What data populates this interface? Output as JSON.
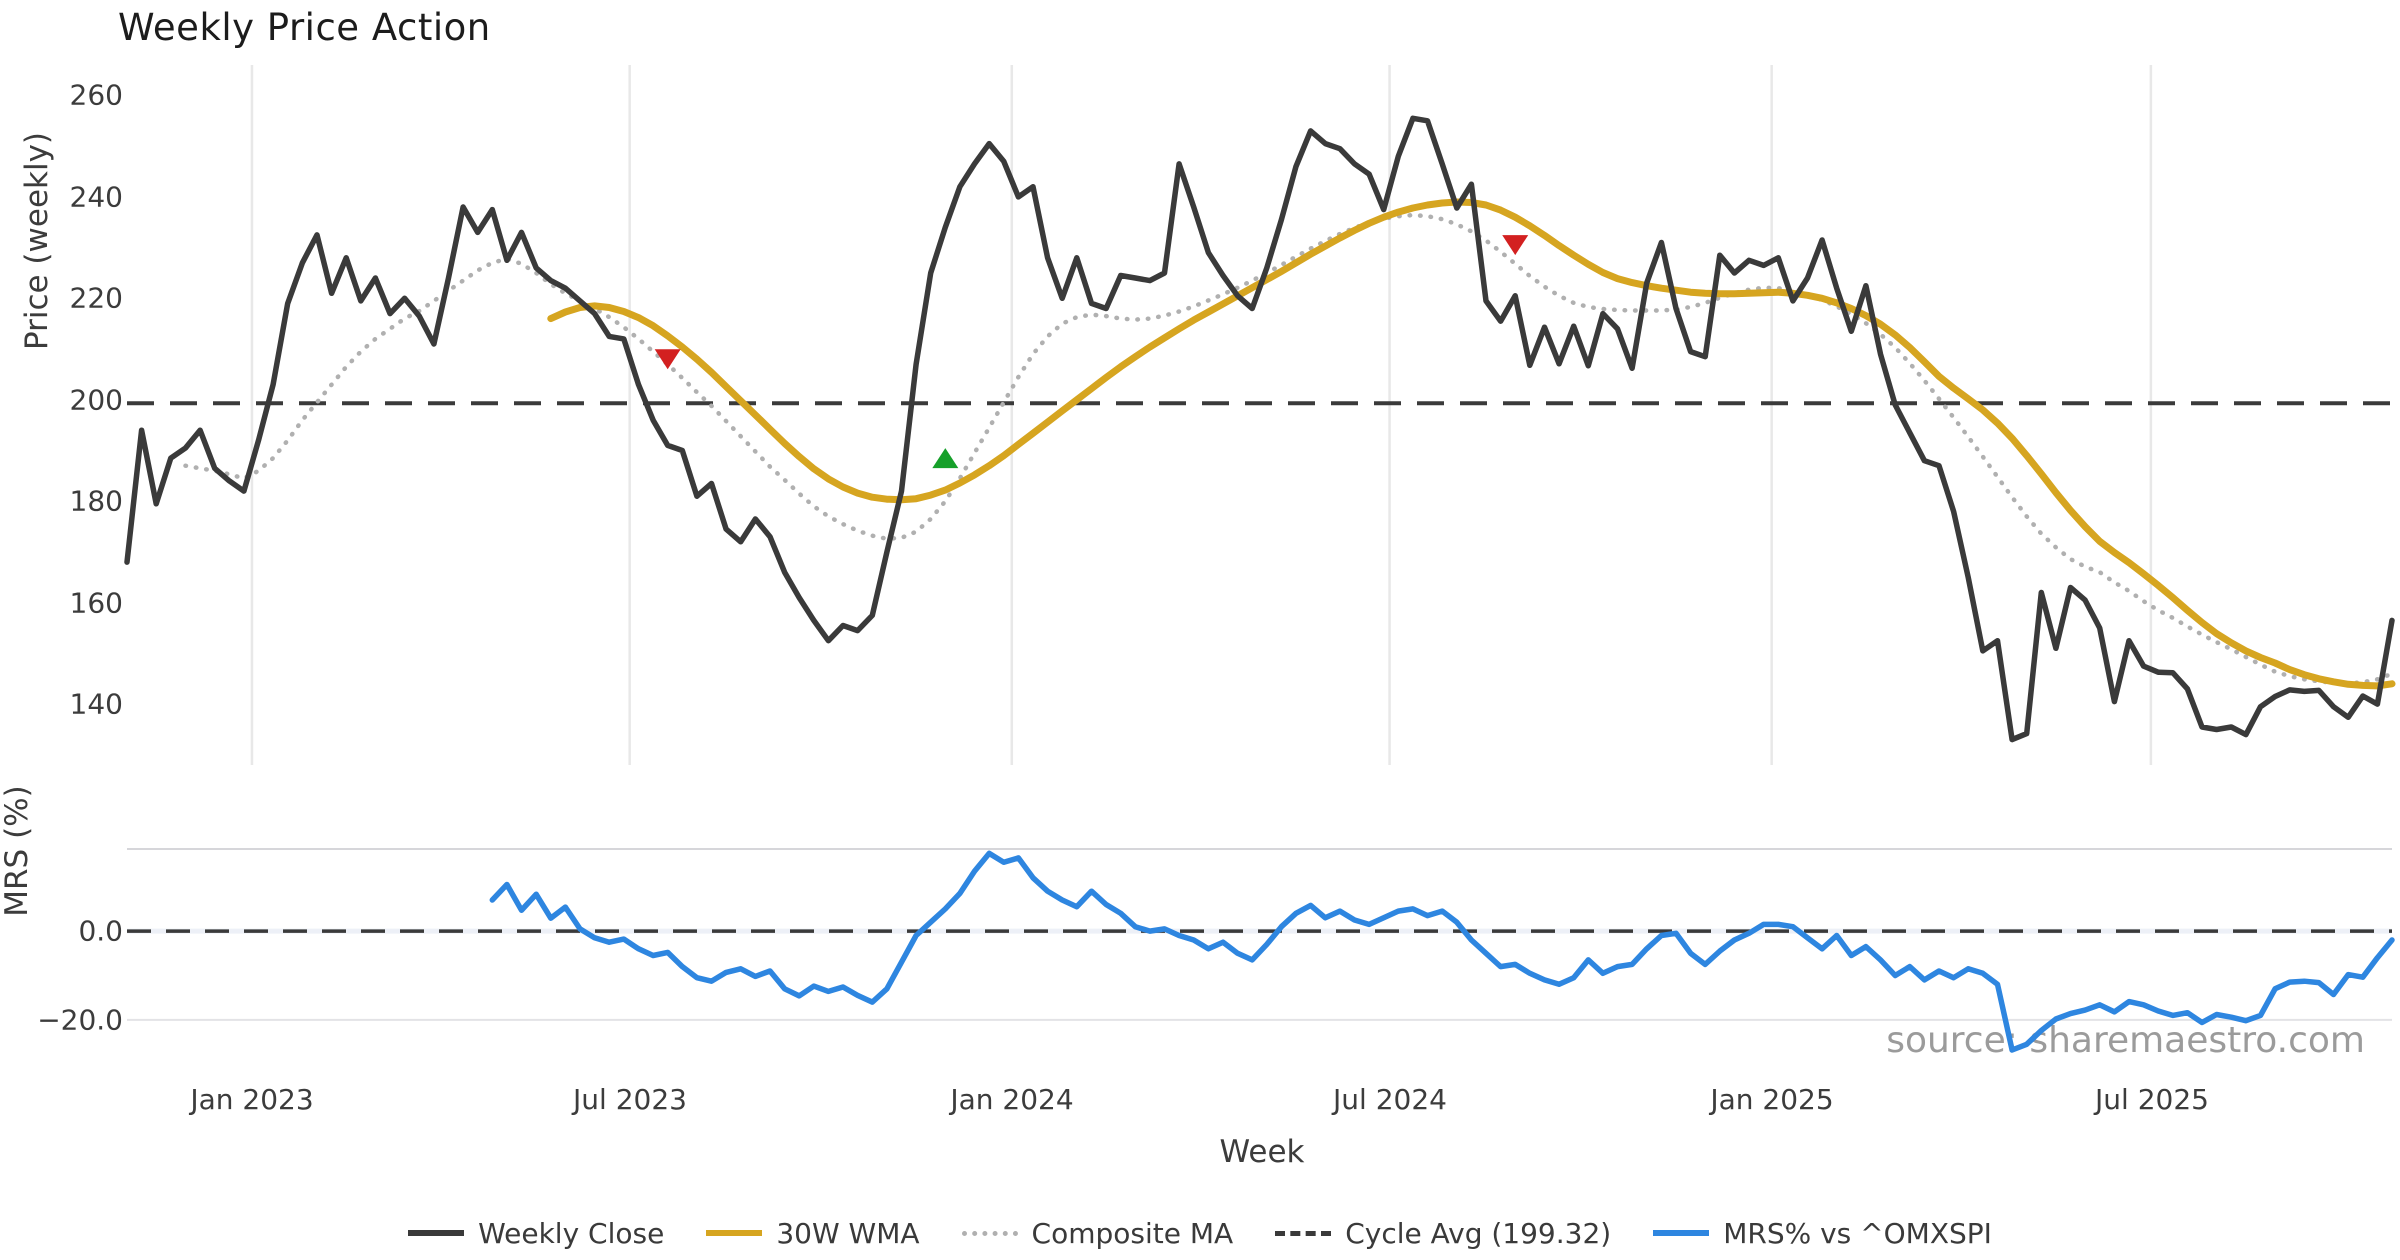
{
  "title": "Weekly Price Action",
  "source_note": "source: sharemaestro.com",
  "axes": {
    "xlabel": "Week",
    "price_ylabel": "Price (weekly)",
    "mrs_ylabel": "MRS (%)",
    "price_yticks": [
      "260",
      "240",
      "220",
      "200",
      "180",
      "160",
      "140"
    ],
    "mrs_yticks": [
      "0.0",
      "−20.0"
    ],
    "xticks": [
      "Jan 2023",
      "Jul 2023",
      "Jan 2024",
      "Jul 2024",
      "Jan 2025",
      "Jul 2025"
    ]
  },
  "legend": {
    "items": [
      {
        "label": "Weekly Close",
        "color": "#3a3a3a",
        "style": "solid"
      },
      {
        "label": "30W WMA",
        "color": "#d6a520",
        "style": "solid"
      },
      {
        "label": "Composite MA",
        "color": "#b0b0b0",
        "style": "dotted"
      },
      {
        "label": "Cycle Avg (199.32)",
        "color": "#3a3a3a",
        "style": "dashed"
      },
      {
        "label": "MRS% vs ^OMXSPI",
        "color": "#2e86e0",
        "style": "solid"
      }
    ]
  },
  "chart_data": {
    "type": "line",
    "title": "Weekly Price Action",
    "xlabel": "Week",
    "x_axis": {
      "tick_labels": [
        "Jan 2023",
        "Jul 2023",
        "Jan 2024",
        "Jul 2024",
        "Jan 2025",
        "Jul 2025"
      ],
      "tick_indices": [
        8.55,
        34.4,
        60.55,
        86.4,
        112.55,
        138.5
      ],
      "n_points": 156
    },
    "panels": [
      {
        "name": "price",
        "ylabel": "Price (weekly)",
        "ylim": [
          128,
          266
        ],
        "ytick_values": [
          260,
          240,
          220,
          200,
          180,
          160,
          140
        ],
        "grid": "vertical",
        "hline": {
          "label": "Cycle Avg (199.32)",
          "value": 199.32,
          "style": "dashed",
          "color": "#3a3a3a"
        },
        "series": [
          {
            "name": "Composite MA",
            "color": "#b0b0b0",
            "style": "dotted",
            "width": 4.5,
            "values": [
              null,
              null,
              null,
              null,
              187,
              186.5,
              186,
              185.3,
              184.5,
              186,
              188.5,
              192,
              196,
              199.5,
              203,
              206.5,
              209.5,
              212,
              214,
              216,
              217.5,
              219.5,
              221.5,
              223.5,
              225.5,
              227,
              227.8,
              226.8,
              225,
              222.8,
              221,
              219.5,
              218,
              216.3,
              214.3,
              212,
              209.5,
              207,
              204.3,
              201.5,
              198.8,
              195.8,
              192.8,
              189.8,
              186.8,
              184.2,
              181.5,
              179,
              177,
              175.5,
              174.2,
              173.2,
              172.6,
              172.8,
              174,
              176.5,
              180,
              184.5,
              189.5,
              194.5,
              199.5,
              204.5,
              209,
              212.5,
              215,
              216.3,
              216.8,
              216.5,
              216,
              215.8,
              216,
              216.6,
              217.4,
              218.4,
              219.6,
              220.8,
              222.1,
              223.5,
              225,
              226.6,
              228.2,
              229.8,
              231.3,
              232.7,
              233.9,
              234.9,
              235.7,
              236.2,
              236.4,
              236.2,
              235.6,
              234.6,
              233.2,
              231.4,
              229.2,
              226.8,
              224.4,
              222.3,
              220.5,
              219.1,
              218.3,
              217.9,
              217.7,
              217.6,
              217.6,
              217.6,
              217.8,
              218.3,
              219.1,
              220.1,
              221,
              221.7,
              222.1,
              222,
              221.5,
              220.7,
              219.7,
              218.4,
              216.9,
              215.1,
              212.9,
              210.3,
              207.2,
              203.8,
              200.2,
              196.5,
              192.7,
              188.8,
              184.8,
              180.8,
              177,
              173.6,
              170.9,
              168.6,
              167.1,
              166,
              164,
              162.3,
              160.3,
              158.5,
              157,
              155.3,
              153.7,
              152.2,
              150.8,
              149.3,
              147.8,
              146.4,
              145.5,
              144.9,
              144.5,
              144.2,
              144.1,
              144.3,
              144.9,
              146
            ]
          },
          {
            "name": "30W WMA",
            "color": "#d6a520",
            "style": "solid",
            "width": 7,
            "values": [
              null,
              null,
              null,
              null,
              null,
              null,
              null,
              null,
              null,
              null,
              null,
              null,
              null,
              null,
              null,
              null,
              null,
              null,
              null,
              null,
              null,
              null,
              null,
              null,
              null,
              null,
              null,
              null,
              null,
              216,
              217.3,
              218.2,
              218.5,
              218.2,
              217.4,
              216.2,
              214.6,
              212.6,
              210.4,
              208,
              205.4,
              202.6,
              199.8,
              197,
              194.2,
              191.4,
              188.8,
              186.4,
              184.4,
              182.8,
              181.6,
              180.8,
              180.4,
              180.3,
              180.5,
              181.2,
              182.2,
              183.6,
              185.2,
              187,
              189,
              191.2,
              193.4,
              195.6,
              197.8,
              200,
              202.2,
              204.4,
              206.5,
              208.5,
              210.4,
              212.2,
              214,
              215.7,
              217.3,
              218.9,
              220.5,
              222.1,
              223.7,
              225.3,
              227,
              228.7,
              230.3,
              231.9,
              233.4,
              234.8,
              236,
              237,
              237.8,
              238.4,
              238.8,
              239,
              238.9,
              238.4,
              237.4,
              236,
              234.3,
              232.4,
              230.4,
              228.5,
              226.7,
              225.1,
              223.9,
              223.1,
              222.5,
              222,
              221.6,
              221.2,
              221,
              220.9,
              220.9,
              221,
              221.1,
              221.2,
              221,
              220.6,
              220,
              219.1,
              218,
              216.6,
              214.9,
              212.8,
              210.3,
              207.5,
              204.6,
              202.3,
              200.2,
              198,
              195.4,
              192.4,
              189,
              185.4,
              181.7,
              178.2,
              175,
              172.1,
              169.9,
              167.9,
              165.7,
              163.4,
              161,
              158.5,
              156.1,
              153.9,
              152.1,
              150.5,
              149.2,
              148.1,
              146.8,
              145.8,
              145,
              144.4,
              143.9,
              143.7,
              143.6,
              144
            ]
          },
          {
            "name": "Weekly Close",
            "color": "#3a3a3a",
            "style": "solid",
            "width": 5.5,
            "values": [
              168,
              194,
              179.5,
              188.5,
              190.5,
              194,
              186.5,
              184,
              182,
              192,
              203,
              219,
              227,
              232.5,
              221,
              228,
              219.5,
              224,
              217,
              220,
              216.5,
              211,
              224,
              238,
              233,
              237.5,
              227.5,
              233,
              226,
              223.5,
              222,
              219.5,
              217,
              212.5,
              212,
              203,
              196,
              191,
              190,
              181,
              183.5,
              174.5,
              172,
              176.5,
              173,
              166,
              161,
              156.5,
              152.5,
              155.5,
              154.5,
              157.5,
              170,
              182,
              207,
              225,
              234,
              242,
              246.5,
              250.5,
              247,
              240,
              242,
              228,
              220,
              228,
              219,
              218,
              224.5,
              224,
              223.5,
              225,
              246.5,
              238,
              229,
              224.5,
              220.5,
              218,
              226,
              235.5,
              246,
              253,
              250.5,
              249.5,
              246.5,
              244.5,
              237.5,
              248,
              255.5,
              255,
              246.5,
              237.8,
              242.5,
              219.5,
              215.5,
              220.5,
              206.8,
              214.3,
              207.1,
              214.5,
              206.7,
              217,
              214,
              206.2,
              223,
              231,
              218,
              209.5,
              208.5,
              228.5,
              225,
              227.5,
              226.5,
              228,
              219.5,
              224,
              231.5,
              222,
              213.5,
              222.5,
              209,
              199,
              193.5,
              188,
              187,
              178,
              165,
              150.5,
              152.5,
              133,
              134.2,
              162,
              151,
              163,
              160.5,
              155,
              140.5,
              152.5,
              147.5,
              146.3,
              146.2,
              143,
              135.5,
              135,
              135.5,
              134,
              139.5,
              141.5,
              142.8,
              142.5,
              142.7,
              139.5,
              137.4,
              141.6,
              140,
              156.5
            ]
          }
        ],
        "markers": [
          {
            "type": "sell-signal",
            "shape": "triangle-down",
            "color": "#d32020",
            "index": 37,
            "value": 208
          },
          {
            "type": "buy-signal",
            "shape": "triangle-up",
            "color": "#16a02a",
            "index": 56,
            "value": 188.5
          },
          {
            "type": "sell-signal",
            "shape": "triangle-down",
            "color": "#d32020",
            "index": 95,
            "value": 230.5
          }
        ]
      },
      {
        "name": "mrs",
        "ylabel": "MRS (%)",
        "ylim": [
          -29.5,
          18.5
        ],
        "ytick_values": [
          0,
          -20
        ],
        "grid": "horizontal",
        "hline": {
          "label": "zero line",
          "value": 0,
          "style": "dashed",
          "color": "#3a3a3a"
        },
        "series": [
          {
            "name": "MRS% vs ^OMXSPI",
            "color": "#2e86e0",
            "style": "solid",
            "width": 5.5,
            "values": [
              null,
              null,
              null,
              null,
              null,
              null,
              null,
              null,
              null,
              null,
              null,
              null,
              null,
              null,
              null,
              null,
              null,
              null,
              null,
              null,
              null,
              null,
              null,
              null,
              null,
              7,
              10.5,
              4.7,
              8.3,
              2.9,
              5.4,
              0.5,
              -1.5,
              -2.5,
              -1.8,
              -4,
              -5.5,
              -4.8,
              -8,
              -10.5,
              -11.3,
              -9.3,
              -8.5,
              -10.2,
              -9,
              -13,
              -14.6,
              -12.4,
              -13.6,
              -12.6,
              -14.5,
              -16,
              -13,
              -7,
              -1,
              2,
              5,
              8.5,
              13.5,
              17.5,
              15.5,
              16.5,
              12,
              9,
              7,
              5.5,
              9,
              6,
              4,
              1,
              0,
              0.5,
              -1,
              -2,
              -4,
              -2.5,
              -5,
              -6.5,
              -3,
              1,
              4,
              5.8,
              3,
              4.5,
              2.5,
              1.5,
              3,
              4.5,
              5,
              3.5,
              4.5,
              2,
              -2,
              -5,
              -8,
              -7.5,
              -9.5,
              -11,
              -12,
              -10.5,
              -6.5,
              -9.5,
              -8,
              -7.5,
              -4,
              -1,
              -0.5,
              -5,
              -7.5,
              -4.5,
              -2,
              -0.5,
              1.5,
              1.5,
              1,
              -1.5,
              -4,
              -1,
              -5.5,
              -3.5,
              -6.5,
              -10,
              -8,
              -11,
              -9,
              -10.5,
              -8.5,
              -9.5,
              -12,
              -26.8,
              -25.5,
              -22.4,
              -19.8,
              -18.6,
              -17.8,
              -16.6,
              -18.2,
              -15.9,
              -16.6,
              -18,
              -19,
              -18.4,
              -20.6,
              -18.8,
              -19.4,
              -20.2,
              -19,
              -13,
              -11.5,
              -11.3,
              -11.6,
              -14.3,
              -9.8,
              -10.4,
              -6,
              -2
            ]
          }
        ]
      }
    ]
  }
}
